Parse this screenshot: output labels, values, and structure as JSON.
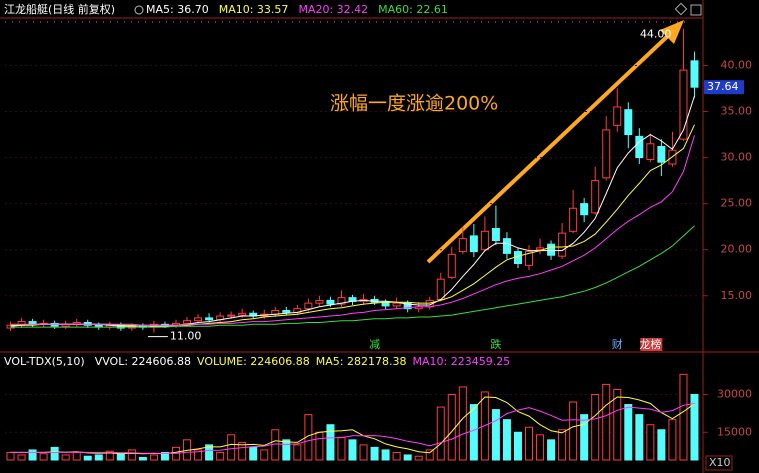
{
  "chart_data": [
    {
      "type": "candlestick",
      "title": "江龙船艇(日线 前复权)",
      "headline": "涨幅一度涨逾200%",
      "open": [
        11.5,
        11.8,
        12.2,
        11.9,
        12.0,
        11.7,
        11.9,
        12.1,
        11.8,
        11.6,
        11.8,
        11.5,
        11.7,
        11.6,
        11.9,
        11.8,
        12.0,
        12.3,
        12.6,
        12.4,
        12.8,
        12.9,
        13.1,
        12.8,
        13.0,
        13.4,
        13.2,
        13.6,
        14.2,
        14.5,
        14.1,
        14.8,
        14.4,
        14.6,
        14.3,
        13.9,
        14.2,
        13.6,
        13.8,
        14.6,
        17.0,
        19.8,
        21.5,
        20.0,
        22.3,
        21.2,
        19.8,
        18.3,
        20.0,
        20.6,
        19.3,
        22.0,
        25.0,
        24.0,
        27.8,
        33.5,
        35.2,
        32.3,
        29.8,
        31.2,
        29.3,
        32.0,
        40.5
      ],
      "high": [
        12.2,
        12.6,
        12.5,
        12.4,
        12.3,
        12.3,
        12.5,
        12.4,
        12.1,
        12.2,
        12.1,
        12.0,
        12.0,
        12.3,
        12.2,
        12.4,
        12.7,
        13.0,
        13.1,
        13.2,
        13.3,
        13.6,
        13.4,
        13.5,
        13.8,
        13.8,
        14.0,
        14.7,
        15.0,
        14.9,
        15.6,
        15.1,
        15.2,
        15.0,
        14.6,
        14.8,
        14.5,
        14.3,
        14.9,
        17.5,
        20.3,
        22.5,
        22.8,
        23.6,
        24.8,
        21.9,
        20.2,
        20.5,
        21.2,
        21.0,
        22.9,
        26.5,
        25.6,
        29.0,
        34.5,
        37.5,
        36.0,
        33.2,
        32.6,
        32.0,
        32.8,
        44.0,
        41.5
      ],
      "low": [
        11.2,
        11.5,
        11.6,
        11.6,
        11.4,
        11.4,
        11.6,
        11.5,
        11.3,
        11.3,
        11.2,
        11.2,
        11.3,
        11.0,
        11.5,
        11.5,
        11.7,
        12.0,
        12.1,
        12.1,
        12.5,
        12.6,
        12.5,
        12.5,
        12.7,
        12.9,
        12.9,
        13.3,
        13.9,
        13.8,
        13.8,
        14.0,
        14.0,
        14.0,
        13.5,
        13.6,
        13.2,
        13.2,
        13.5,
        14.4,
        16.8,
        19.5,
        19.2,
        19.8,
        20.5,
        19.0,
        18.0,
        17.8,
        19.5,
        18.9,
        19.0,
        21.8,
        23.0,
        23.8,
        27.5,
        32.8,
        31.0,
        29.3,
        29.5,
        28.0,
        29.0,
        31.8,
        36.5
      ],
      "close": [
        11.8,
        12.2,
        11.9,
        12.0,
        11.7,
        11.9,
        12.1,
        11.8,
        11.6,
        11.8,
        11.5,
        11.7,
        11.6,
        11.9,
        11.8,
        12.0,
        12.3,
        12.6,
        12.4,
        12.8,
        12.9,
        13.1,
        12.8,
        13.0,
        13.4,
        13.2,
        13.6,
        14.2,
        14.5,
        14.1,
        14.8,
        14.4,
        14.6,
        14.3,
        13.9,
        14.2,
        13.6,
        13.8,
        14.5,
        16.8,
        19.5,
        21.2,
        19.8,
        22.0,
        21.0,
        19.6,
        18.5,
        19.8,
        20.2,
        19.4,
        21.8,
        24.5,
        23.8,
        27.5,
        33.0,
        35.5,
        32.5,
        30.0,
        31.5,
        29.5,
        30.8,
        39.5,
        37.64
      ],
      "up_color": "#ff3c3c",
      "down_color": "#54fcfc",
      "ylim": [
        10.2,
        44.5
      ],
      "yticks": [
        {
          "value": 15,
          "label": "15.00"
        },
        {
          "value": 20,
          "label": "20.00"
        },
        {
          "value": 25,
          "label": "25.00"
        },
        {
          "value": 30,
          "label": "30.00"
        },
        {
          "value": 35,
          "label": "35.00"
        },
        {
          "value": 40,
          "label": "40.00"
        }
      ],
      "high_label": {
        "value": 44.0,
        "label": "44.00"
      },
      "low_label": {
        "value": 11.0,
        "label": "11.00"
      },
      "last_price": {
        "value": 37.64,
        "label": "37.64"
      },
      "events": [
        null,
        null,
        null,
        null,
        null,
        null,
        null,
        null,
        null,
        null,
        null,
        null,
        null,
        null,
        null,
        null,
        null,
        null,
        null,
        null,
        null,
        null,
        null,
        null,
        null,
        null,
        null,
        null,
        null,
        null,
        null,
        null,
        null,
        {
          "label": "减",
          "color": "#3cdc3c"
        },
        null,
        null,
        null,
        null,
        null,
        null,
        null,
        null,
        null,
        null,
        {
          "label": "跌",
          "color": "#3cdc3c"
        },
        null,
        null,
        null,
        null,
        null,
        null,
        null,
        null,
        null,
        null,
        {
          "label": "财",
          "color": "#6aa8ff"
        },
        null,
        null,
        {
          "label": "龙榜",
          "color": "#ffffff"
        },
        null,
        null,
        null,
        null
      ],
      "series": [
        {
          "legend": "MA5: 36.70",
          "color": "#ffffff",
          "values": [
            11.7,
            11.8,
            11.9,
            11.9,
            11.9,
            11.9,
            11.9,
            11.9,
            11.9,
            11.8,
            11.7,
            11.7,
            11.6,
            11.7,
            11.7,
            11.8,
            11.9,
            12.1,
            12.2,
            12.4,
            12.6,
            12.8,
            12.8,
            12.9,
            13.0,
            13.1,
            13.2,
            13.5,
            13.8,
            14.0,
            14.2,
            14.4,
            14.5,
            14.4,
            14.4,
            14.3,
            14.1,
            14.0,
            14.0,
            14.6,
            15.7,
            17.1,
            18.4,
            19.9,
            20.7,
            20.7,
            20.2,
            19.9,
            19.9,
            19.9,
            19.9,
            20.7,
            21.9,
            23.4,
            26.1,
            28.9,
            30.5,
            31.7,
            32.5,
            31.8,
            30.9,
            33.0,
            36.7
          ]
        },
        {
          "legend": "MA10: 33.57",
          "color": "#ffff3c",
          "values": [
            11.8,
            11.8,
            11.8,
            11.9,
            11.9,
            11.9,
            11.9,
            11.9,
            11.9,
            11.9,
            11.8,
            11.8,
            11.8,
            11.8,
            11.8,
            11.8,
            11.8,
            11.9,
            12.0,
            12.1,
            12.2,
            12.4,
            12.5,
            12.7,
            12.8,
            12.9,
            13.0,
            13.2,
            13.4,
            13.6,
            13.7,
            13.9,
            14.1,
            14.2,
            14.3,
            14.3,
            14.3,
            14.2,
            14.2,
            14.5,
            14.9,
            15.6,
            16.3,
            17.2,
            18.1,
            18.9,
            19.3,
            19.6,
            19.9,
            20.3,
            20.3,
            20.4,
            20.9,
            21.7,
            23.0,
            24.4,
            25.9,
            27.2,
            28.6,
            29.2,
            30.1,
            31.0,
            33.57
          ]
        },
        {
          "legend": "MA20: 32.42",
          "color": "#ff3cff",
          "values": [
            11.9,
            11.9,
            11.9,
            11.9,
            11.9,
            11.9,
            11.9,
            11.9,
            11.9,
            11.9,
            11.9,
            11.9,
            11.8,
            11.8,
            11.8,
            11.8,
            11.9,
            11.9,
            11.9,
            12.0,
            12.0,
            12.1,
            12.2,
            12.2,
            12.3,
            12.4,
            12.5,
            12.6,
            12.7,
            12.8,
            12.9,
            13.1,
            13.2,
            13.4,
            13.5,
            13.6,
            13.7,
            13.8,
            13.8,
            14.0,
            14.3,
            14.7,
            15.2,
            15.7,
            16.2,
            16.6,
            16.9,
            17.1,
            17.4,
            17.8,
            18.2,
            18.8,
            19.4,
            20.2,
            21.2,
            22.2,
            23.1,
            23.8,
            24.6,
            25.2,
            26.3,
            28.5,
            32.42
          ]
        },
        {
          "legend": "MA60: 22.61",
          "color": "#3cdc3c",
          "values": [
            11.6,
            11.6,
            11.6,
            11.6,
            11.6,
            11.6,
            11.6,
            11.6,
            11.6,
            11.6,
            11.6,
            11.6,
            11.6,
            11.6,
            11.6,
            11.7,
            11.7,
            11.7,
            11.7,
            11.8,
            11.8,
            11.8,
            11.9,
            11.9,
            11.9,
            12.0,
            12.0,
            12.1,
            12.1,
            12.2,
            12.3,
            12.3,
            12.4,
            12.5,
            12.5,
            12.6,
            12.6,
            12.7,
            12.7,
            12.8,
            12.9,
            13.1,
            13.3,
            13.5,
            13.7,
            13.9,
            14.1,
            14.3,
            14.5,
            14.7,
            14.9,
            15.2,
            15.5,
            15.9,
            16.4,
            17.0,
            17.6,
            18.2,
            18.9,
            19.6,
            20.4,
            21.5,
            22.61
          ]
        }
      ]
    },
    {
      "type": "bar",
      "title": "VOL-TDX(5,10)",
      "header_labels": [
        {
          "text": "VVOL: 224606.88",
          "color": "#ffffff"
        },
        {
          "text": "VOLUME: 224606.88",
          "color": "#ffff3c"
        }
      ],
      "values": [
        7000,
        6000,
        8000,
        6500,
        9000,
        6000,
        7000,
        5500,
        6000,
        7500,
        6500,
        8000,
        5000,
        6000,
        7000,
        9000,
        12000,
        8000,
        10000,
        7000,
        14000,
        11000,
        9000,
        8000,
        16000,
        12000,
        10000,
        22000,
        15000,
        18000,
        13000,
        12000,
        10000,
        9000,
        8000,
        7000,
        6000,
        5500,
        8000,
        25000,
        30000,
        33000,
        26000,
        31000,
        24000,
        20000,
        15000,
        17000,
        14000,
        12000,
        16000,
        27000,
        22000,
        30000,
        34000,
        32000,
        26000,
        22000,
        18000,
        16000,
        20000,
        38000,
        30000
      ],
      "ylim": [
        4000,
        40500
      ],
      "yticks": [
        15000,
        30000
      ],
      "scale_label": "X10",
      "series": [
        {
          "legend": "MA5: 282178.38",
          "color": "#ffff3c",
          "values": [
            7000,
            7000,
            7000,
            7000,
            7300,
            7100,
            7300,
            6800,
            6700,
            6800,
            6500,
            6700,
            6500,
            6600,
            6500,
            7100,
            7800,
            8400,
            9200,
            9200,
            10200,
            10000,
            10200,
            9800,
            11600,
            11200,
            11000,
            13600,
            15000,
            15400,
            15600,
            16000,
            13600,
            12400,
            10400,
            9200,
            8400,
            7300,
            6900,
            10500,
            15300,
            20500,
            24400,
            29000,
            28800,
            26800,
            23200,
            21400,
            18000,
            15600,
            14800,
            17200,
            18200,
            21600,
            25800,
            29000,
            28800,
            27800,
            26400,
            22800,
            20400,
            23200,
            26320
          ]
        },
        {
          "legend": "MA10: 223459.25",
          "color": "#ff3cff",
          "values": [
            7000,
            7000,
            7000,
            7000,
            7000,
            7000,
            7100,
            7000,
            7000,
            7000,
            6900,
            6900,
            6700,
            6700,
            6600,
            6600,
            7100,
            7300,
            7800,
            7900,
            8500,
            8900,
            9300,
            9500,
            10400,
            10200,
            10400,
            11700,
            12500,
            12800,
            12900,
            13600,
            13600,
            13700,
            13300,
            12500,
            11400,
            10700,
            9600,
            10900,
            12300,
            14300,
            15800,
            17700,
            19600,
            22400,
            23800,
            24800,
            23400,
            21700,
            19800,
            20000,
            19800,
            20300,
            21600,
            23700,
            25000,
            24600,
            24200,
            22900,
            23600,
            25700,
            26400
          ]
        }
      ]
    }
  ]
}
